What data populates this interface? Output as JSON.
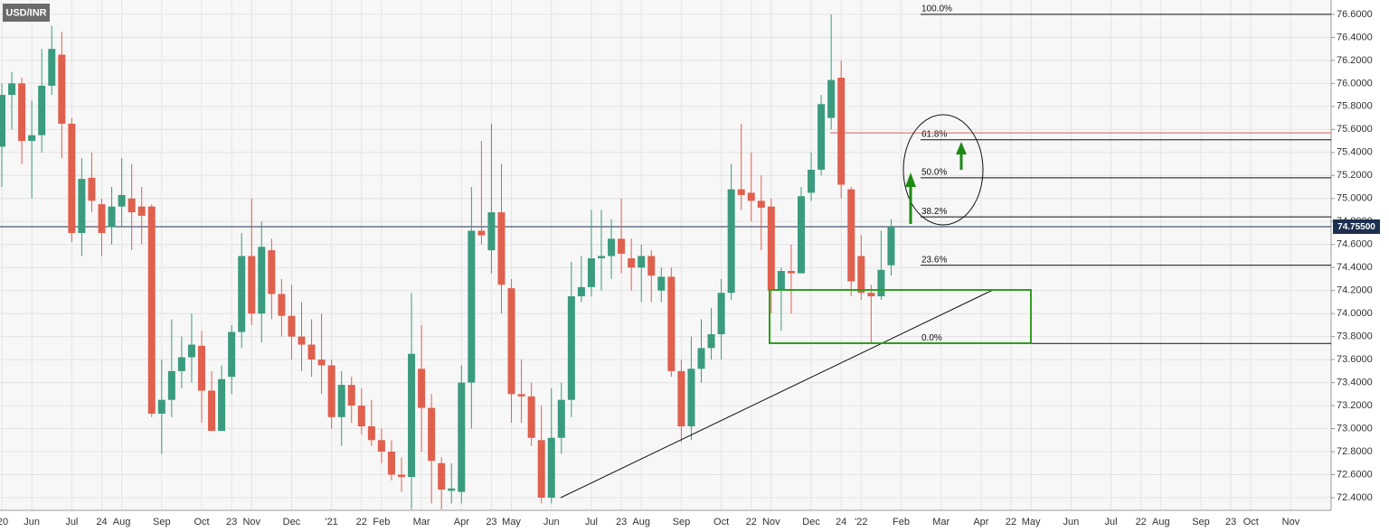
{
  "chart_data": {
    "type": "candlestick",
    "title": "USD/INR",
    "categories": [
      "'20",
      null,
      null,
      "Jun",
      null,
      null,
      null,
      "Jul",
      null,
      null,
      "24",
      null,
      "Aug",
      null,
      null,
      null,
      "Sep",
      null,
      null,
      null,
      "Oct",
      null,
      null,
      "23",
      null,
      "Nov",
      null,
      null,
      null,
      "Dec",
      null,
      null,
      null,
      "'21",
      null,
      null,
      "22",
      null,
      "Feb",
      null,
      null,
      null,
      "Mar",
      null,
      null,
      null,
      "Apr",
      null,
      null,
      "23",
      null,
      "May",
      null,
      null,
      null,
      "Jun",
      null,
      null,
      null,
      "Jul",
      null,
      null,
      "23",
      null,
      "Aug",
      null,
      null,
      null,
      "Sep",
      null,
      null,
      null,
      "Oct",
      null,
      null,
      "22",
      null,
      "Nov",
      null,
      null,
      null,
      "Dec",
      null,
      null,
      "24",
      null,
      "'22",
      null,
      null,
      null,
      "Feb",
      null,
      null,
      null,
      "Mar",
      null,
      null,
      null,
      "Apr",
      null,
      null,
      "22",
      null,
      "May",
      null,
      null,
      null,
      "Jun",
      null,
      null,
      null,
      "Jul",
      null,
      null,
      "22",
      null,
      "Aug",
      null,
      null,
      null,
      "Sep",
      null,
      null,
      "23",
      null,
      "Oct",
      null,
      null,
      null,
      "Nov",
      null,
      null,
      null
    ],
    "open": [
      75.45,
      75.9,
      76.0,
      75.5,
      75.55,
      75.98,
      76.25,
      75.65,
      74.7,
      75.18,
      74.95,
      74.75,
      74.93,
      75.0,
      74.93,
      74.93,
      73.13,
      73.25,
      73.5,
      73.62,
      73.72,
      73.33,
      72.98,
      73.45,
      73.84,
      74.5,
      74.0,
      74.55,
      74.17,
      73.98,
      73.8,
      73.73,
      73.6,
      73.55,
      73.1,
      73.38,
      73.2,
      73.02,
      72.9,
      72.8,
      72.6,
      72.58,
      73.52,
      73.18,
      72.7,
      72.46,
      72.45,
      73.4,
      74.72,
      74.55,
      74.88,
      74.22,
      73.3,
      73.28,
      72.9,
      72.4,
      72.92,
      73.25,
      74.15,
      74.23,
      74.48,
      74.5,
      74.65,
      74.48,
      74.4,
      74.5,
      74.2,
      74.32,
      73.5,
      73.02,
      73.52,
      73.7,
      73.82,
      74.18,
      75.08,
      75.05,
      74.98,
      74.93,
      74.2,
      74.37,
      74.35,
      75.05,
      75.25,
      75.7,
      76.05,
      75.08,
      74.5,
      74.18,
      74.15,
      74.42,
      null,
      null,
      null,
      null,
      null,
      null,
      null,
      null,
      null,
      null,
      null,
      null,
      null,
      null,
      null,
      null,
      null,
      null,
      null,
      null,
      null,
      null,
      null,
      null,
      null,
      null,
      null,
      null,
      null,
      null,
      null,
      null,
      null,
      null,
      null,
      null,
      null,
      null,
      null,
      null,
      null,
      null,
      null
    ],
    "high": [
      76.0,
      76.1,
      76.05,
      75.85,
      76.3,
      76.5,
      76.45,
      75.7,
      75.35,
      75.4,
      75.0,
      75.1,
      75.35,
      75.3,
      75.1,
      74.95,
      73.6,
      73.95,
      73.8,
      74.0,
      73.85,
      73.5,
      73.55,
      73.9,
      74.7,
      75.0,
      74.8,
      74.65,
      74.3,
      74.25,
      74.1,
      73.95,
      74.0,
      73.6,
      73.5,
      73.45,
      73.35,
      73.25,
      73.0,
      72.9,
      72.75,
      74.18,
      73.9,
      73.3,
      72.75,
      72.7,
      73.55,
      75.1,
      75.5,
      75.65,
      75.3,
      74.3,
      73.6,
      73.4,
      73.2,
      73.35,
      73.4,
      74.45,
      74.5,
      74.9,
      74.9,
      74.82,
      75.0,
      74.65,
      74.6,
      74.55,
      74.4,
      74.4,
      73.6,
      73.8,
      73.95,
      74.05,
      74.3,
      75.3,
      75.65,
      75.4,
      75.2,
      75.0,
      74.4,
      74.6,
      75.1,
      75.4,
      75.9,
      76.6,
      76.2,
      75.1,
      74.68,
      74.25,
      74.72,
      74.82,
      null,
      null,
      null,
      null,
      null,
      null,
      null,
      null,
      null,
      null,
      null,
      null,
      null,
      null,
      null,
      null,
      null,
      null,
      null,
      null,
      null,
      null,
      null,
      null,
      null,
      null,
      null,
      null,
      null,
      null,
      null,
      null,
      null,
      null,
      null,
      null,
      null,
      null,
      null,
      null,
      null,
      null,
      null
    ],
    "low": [
      75.1,
      75.6,
      75.3,
      75.0,
      75.4,
      75.9,
      75.35,
      74.62,
      74.5,
      74.88,
      74.5,
      74.6,
      74.75,
      74.55,
      74.6,
      73.1,
      72.78,
      73.1,
      73.35,
      73.4,
      73.05,
      72.98,
      72.98,
      73.3,
      73.7,
      73.9,
      73.75,
      73.95,
      73.8,
      73.6,
      73.5,
      73.45,
      73.3,
      73.0,
      72.85,
      73.05,
      72.95,
      72.85,
      72.7,
      72.55,
      72.45,
      72.3,
      72.8,
      72.35,
      72.3,
      72.35,
      72.35,
      73.0,
      74.6,
      74.35,
      74.0,
      73.05,
      73.05,
      72.85,
      72.35,
      72.35,
      72.78,
      73.1,
      74.1,
      74.15,
      74.2,
      74.3,
      74.35,
      74.2,
      74.1,
      74.1,
      74.1,
      73.45,
      72.88,
      72.9,
      73.4,
      73.6,
      73.6,
      74.12,
      74.9,
      74.8,
      74.55,
      74.0,
      73.85,
      74.0,
      74.35,
      74.98,
      75.2,
      75.6,
      75.0,
      74.15,
      74.12,
      73.75,
      74.12,
      74.33,
      null,
      null,
      null,
      null,
      null,
      null,
      null,
      null,
      null,
      null,
      null,
      null,
      null,
      null,
      null,
      null,
      null,
      null,
      null,
      null,
      null,
      null,
      null,
      null,
      null,
      null,
      null,
      null,
      null,
      null,
      null,
      null,
      null,
      null,
      null,
      null,
      null,
      null,
      null,
      null,
      null,
      null,
      null
    ],
    "close": [
      75.9,
      76.0,
      75.5,
      75.55,
      75.98,
      76.3,
      75.65,
      74.7,
      75.17,
      74.98,
      74.7,
      74.93,
      75.03,
      74.88,
      74.85,
      73.13,
      73.25,
      73.5,
      73.62,
      73.73,
      73.33,
      72.98,
      73.43,
      73.84,
      74.5,
      74.0,
      74.58,
      74.17,
      73.98,
      73.8,
      73.73,
      73.6,
      73.55,
      73.1,
      73.38,
      73.2,
      73.02,
      72.9,
      72.8,
      72.6,
      72.58,
      73.65,
      73.18,
      72.72,
      72.47,
      72.48,
      73.4,
      74.72,
      74.68,
      74.88,
      74.25,
      73.3,
      73.28,
      72.92,
      72.4,
      72.92,
      73.25,
      74.15,
      74.23,
      74.48,
      74.5,
      74.65,
      74.52,
      74.4,
      74.5,
      74.33,
      74.32,
      73.5,
      73.02,
      73.52,
      73.7,
      73.82,
      74.18,
      75.08,
      75.03,
      74.98,
      74.92,
      74.2,
      74.37,
      74.35,
      75.02,
      75.25,
      75.82,
      76.03,
      75.12,
      74.28,
      74.18,
      74.15,
      74.38,
      74.755,
      null,
      null,
      null,
      null,
      null,
      null,
      null,
      null,
      null,
      null,
      null,
      null,
      null,
      null,
      null,
      null,
      null,
      null,
      null,
      null,
      null,
      null,
      null,
      null,
      null,
      null,
      null,
      null,
      null,
      null,
      null,
      null,
      null,
      null,
      null,
      null,
      null,
      null,
      null,
      null,
      null,
      null,
      null
    ],
    "up_color": "#3a9b7f",
    "down_color": "#e0604e",
    "ylim": [
      72.29,
      76.725
    ],
    "yticks": [
      {
        "value": 72.4,
        "label": "72.4000"
      },
      {
        "value": 72.6,
        "label": "72.6000"
      },
      {
        "value": 72.8,
        "label": "72.8000"
      },
      {
        "value": 73.0,
        "label": "73.0000"
      },
      {
        "value": 73.2,
        "label": "73.2000"
      },
      {
        "value": 73.4,
        "label": "73.4000"
      },
      {
        "value": 73.6,
        "label": "73.6000"
      },
      {
        "value": 73.8,
        "label": "73.8000"
      },
      {
        "value": 74.0,
        "label": "74.0000"
      },
      {
        "value": 74.2,
        "label": "74.2000"
      },
      {
        "value": 74.4,
        "label": "74.4000"
      },
      {
        "value": 74.6,
        "label": "74.6000"
      },
      {
        "value": 74.8,
        "label": "74.8000"
      },
      {
        "value": 75.0,
        "label": "75.0000"
      },
      {
        "value": 75.2,
        "label": "75.2000"
      },
      {
        "value": 75.4,
        "label": "75.4000"
      },
      {
        "value": 75.6,
        "label": "75.6000"
      },
      {
        "value": 75.8,
        "label": "75.8000"
      },
      {
        "value": 76.0,
        "label": "76.0000"
      },
      {
        "value": 76.2,
        "label": "76.2000"
      },
      {
        "value": 76.4,
        "label": "76.4000"
      },
      {
        "value": 76.6,
        "label": "76.6000"
      }
    ],
    "grid": true,
    "fib_levels": [
      {
        "value": 76.6,
        "label": "100.0%"
      },
      {
        "value": 75.51,
        "label": "61.8%"
      },
      {
        "value": 75.18,
        "label": "50.0%"
      },
      {
        "value": 74.84,
        "label": "38.2%"
      },
      {
        "value": 74.42,
        "label": "23.6%"
      },
      {
        "value": 73.74,
        "label": "0.0%"
      }
    ],
    "levels": [
      {
        "value": 75.57,
        "color": "#e0604e"
      }
    ],
    "last_price": {
      "value": 74.755,
      "label": "74.75500"
    }
  }
}
